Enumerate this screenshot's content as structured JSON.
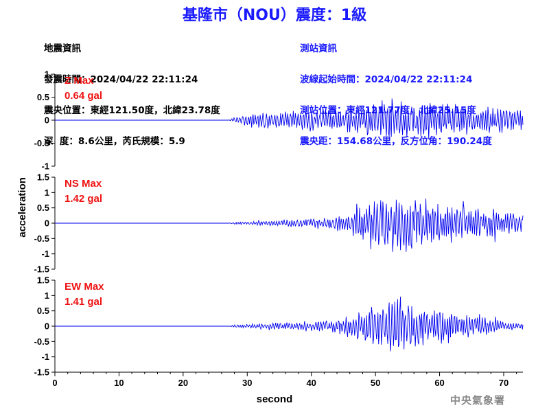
{
  "title": "基隆市（NOU）震度：1級",
  "quake_info": {
    "heading": "地震資訊",
    "time": "發震時間：2024/04/22 22:11:24",
    "location": "震央位置：東經121.50度，北緯23.78度",
    "depth": "深  度：8.6公里，芮氏規模：5.9"
  },
  "station_info": {
    "heading": "測站資訊",
    "wave_start": "波線起始時間：2024/04/22 22:11:24",
    "location": "測站位置：東經121.77度，北緯25.15度",
    "distance": "震央距：154.68公里，反方位角：190.24度"
  },
  "agency": "中央氣象署",
  "colors": {
    "title": "#1a1aff",
    "trace": "#0000ee",
    "max_label": "#ee1111",
    "station_info": "#1a1aff"
  },
  "chart_data": {
    "type": "line",
    "xlabel": "second",
    "ylabel": "acceleration",
    "xlim": [
      0,
      73
    ],
    "xticks": [
      0,
      10,
      20,
      30,
      40,
      50,
      60,
      70
    ],
    "quake_onset_s": 27,
    "panels": [
      {
        "component": "Z",
        "max_label": "Z Max",
        "max_value": "0.64 gal",
        "ylim": [
          -1,
          1
        ],
        "yticks": [
          -1,
          -0.5,
          0,
          0.5,
          1
        ],
        "ytick_labels": [
          "-1",
          "-0.5",
          "0",
          "0.5",
          "1"
        ],
        "envelope": [
          [
            27,
            0
          ],
          [
            28,
            0.08
          ],
          [
            30,
            0.2
          ],
          [
            33,
            0.25
          ],
          [
            38,
            0.28
          ],
          [
            42,
            0.32
          ],
          [
            46,
            0.38
          ],
          [
            50,
            0.5
          ],
          [
            53,
            0.6
          ],
          [
            56,
            0.55
          ],
          [
            60,
            0.5
          ],
          [
            65,
            0.45
          ],
          [
            70,
            0.4
          ],
          [
            73,
            0.3
          ]
        ],
        "trace_end": -0.1
      },
      {
        "component": "NS",
        "max_label": "NS Max",
        "max_value": "1.42 gal",
        "ylim": [
          -1.5,
          1.5
        ],
        "yticks": [
          -1.5,
          -1,
          -0.5,
          0,
          0.5,
          1,
          1.5
        ],
        "ytick_labels": [
          "-1.5",
          "-1",
          "-0.5",
          "0",
          "0.5",
          "1",
          "1.5"
        ],
        "envelope": [
          [
            27,
            0
          ],
          [
            28,
            0.05
          ],
          [
            30,
            0.08
          ],
          [
            35,
            0.15
          ],
          [
            40,
            0.18
          ],
          [
            44,
            0.3
          ],
          [
            47,
            0.7
          ],
          [
            50,
            1.0
          ],
          [
            52,
            1.3
          ],
          [
            54,
            1.4
          ],
          [
            57,
            1.1
          ],
          [
            60,
            0.9
          ],
          [
            63,
            0.8
          ],
          [
            67,
            0.7
          ],
          [
            70,
            0.55
          ],
          [
            73,
            0.45
          ]
        ],
        "trace_end": 0.25
      },
      {
        "component": "EW",
        "max_label": "EW Max",
        "max_value": "1.41 gal",
        "ylim": [
          -1.5,
          1.5
        ],
        "yticks": [
          -1.5,
          -1,
          -0.5,
          0,
          0.5,
          1,
          1.5
        ],
        "ytick_labels": [
          "-1.5",
          "-1",
          "-0.5",
          "0",
          "0.5",
          "1",
          "1.5"
        ],
        "envelope": [
          [
            27,
            0
          ],
          [
            28,
            0.05
          ],
          [
            30,
            0.08
          ],
          [
            35,
            0.15
          ],
          [
            40,
            0.2
          ],
          [
            44,
            0.3
          ],
          [
            47,
            0.7
          ],
          [
            50,
            1.1
          ],
          [
            52,
            1.35
          ],
          [
            54,
            1.4
          ],
          [
            57,
            1.05
          ],
          [
            60,
            0.8
          ],
          [
            63,
            0.6
          ],
          [
            67,
            0.4
          ],
          [
            70,
            0.25
          ],
          [
            73,
            0.15
          ]
        ],
        "trace_end": 0.05
      }
    ]
  }
}
